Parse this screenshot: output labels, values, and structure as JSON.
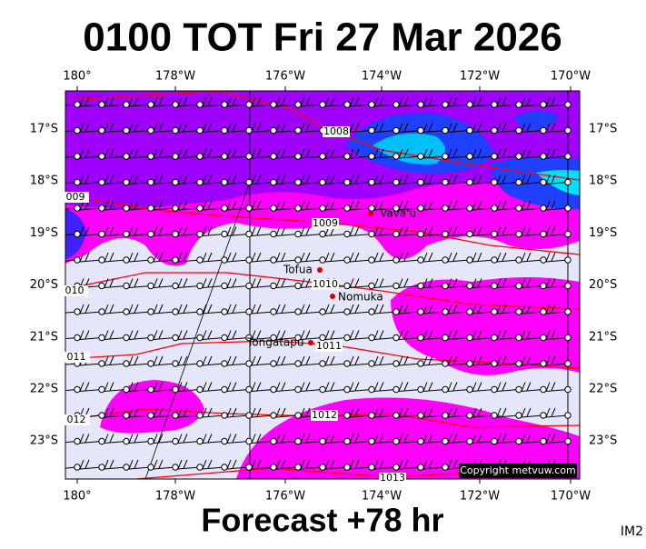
{
  "header": {
    "title": "0100 TOT Fri 27 Mar 2026"
  },
  "footer": {
    "forecast": "Forecast +78 hr",
    "image_id": "IM2"
  },
  "map": {
    "longitude_labels": [
      "180°",
      "178°W",
      "176°W",
      "174°W",
      "172°W",
      "170°W"
    ],
    "latitude_labels": [
      "17°S",
      "18°S",
      "19°S",
      "20°S",
      "21°S",
      "22°S",
      "23°S"
    ],
    "places": [
      "Vava'u",
      "Tofua",
      "Nomuka",
      "Tongatapu"
    ],
    "isobar_labels": [
      "1008",
      "1009",
      "1010",
      "1011",
      "1012",
      "1013",
      "009",
      "010",
      "011",
      "012"
    ],
    "copyright": "Copyright metvuw.com"
  }
}
